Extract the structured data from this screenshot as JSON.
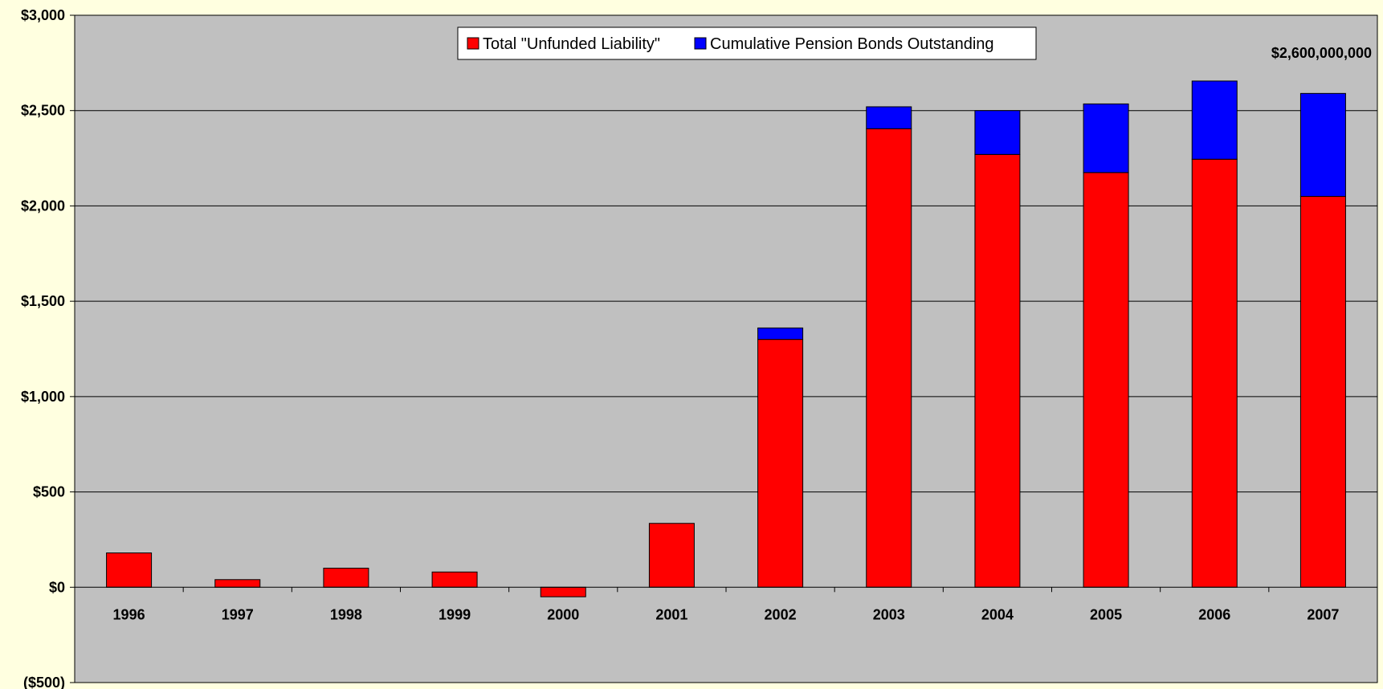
{
  "chart_data": {
    "type": "bar",
    "stacked": true,
    "title": "",
    "xlabel": "",
    "ylabel": "",
    "categories": [
      "1996",
      "1997",
      "1998",
      "1999",
      "2000",
      "2001",
      "2002",
      "2003",
      "2004",
      "2005",
      "2006",
      "2007"
    ],
    "series": [
      {
        "name": "Total \"Unfunded Liability\"",
        "color": "#ff0000",
        "values": [
          180,
          40,
          100,
          80,
          -50,
          335,
          1300,
          2405,
          2270,
          2175,
          2245,
          2050
        ]
      },
      {
        "name": "Cumulative Pension Bonds Outstanding",
        "color": "#0000ff",
        "values": [
          0,
          0,
          0,
          0,
          0,
          0,
          60,
          115,
          230,
          360,
          410,
          540
        ]
      }
    ],
    "ylim": [
      -500,
      3000
    ],
    "yticks": [
      -500,
      0,
      500,
      1000,
      1500,
      2000,
      2500,
      3000
    ],
    "ytick_labels": [
      "($500)",
      "$0",
      "$500",
      "$1,000",
      "$1,500",
      "$2,000",
      "$2,500",
      "$3,000"
    ],
    "grid": true,
    "legend_position": "top-center",
    "annotation": "$2,600,000,000",
    "plot_bg": "#c0c0c0",
    "page_bg": "#ffffe0"
  }
}
